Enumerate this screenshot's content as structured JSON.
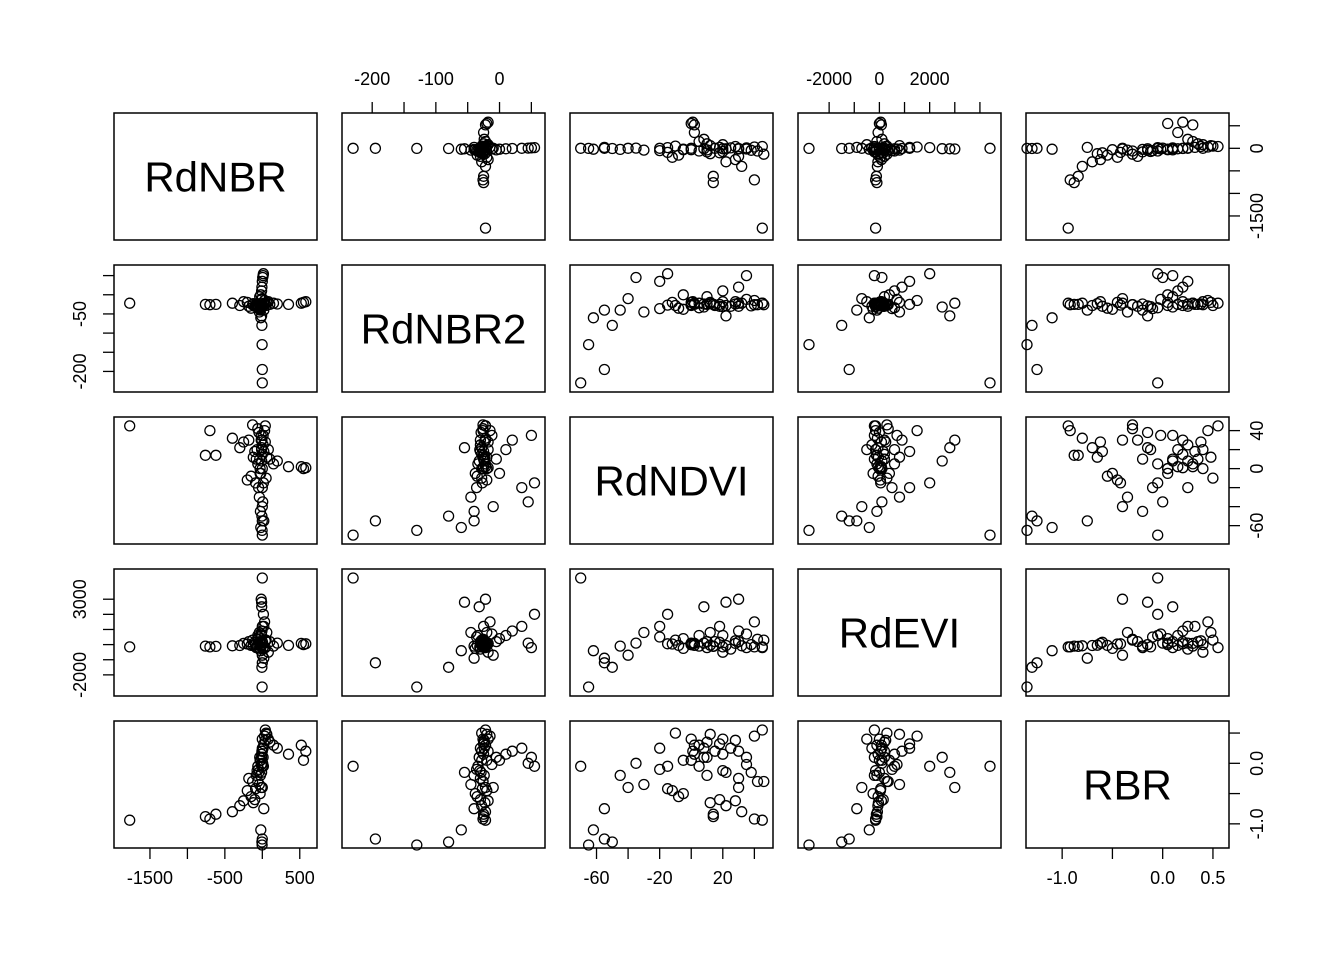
{
  "chart_data": {
    "type": "scatter",
    "subtype": "pairs-matrix",
    "title": "",
    "variables": [
      {
        "name": "RdNBR",
        "range": [
          -1900,
          650
        ]
      },
      {
        "name": "RdNBR2",
        "range": [
          -238,
          62
        ]
      },
      {
        "name": "RdNDVI",
        "range": [
          -73,
          48
        ]
      },
      {
        "name": "RdEVI",
        "range": [
          -3000,
          4600
        ]
      },
      {
        "name": "RBR",
        "range": [
          -1.3,
          0.6
        ]
      }
    ],
    "axes": [
      {
        "variable": "RdNBR",
        "side": "bottom",
        "ticks": [
          -1500,
          -1000,
          -500,
          0,
          500
        ],
        "labels": [
          "-1500",
          "",
          "-500",
          "",
          "500"
        ]
      },
      {
        "variable": "RdNBR2",
        "side": "top",
        "ticks": [
          -200,
          -150,
          -100,
          -50,
          0,
          50
        ],
        "labels": [
          "-200",
          "",
          "-100",
          "",
          "0",
          ""
        ]
      },
      {
        "variable": "RdNDVI",
        "side": "bottom",
        "ticks": [
          -60,
          -40,
          -20,
          0,
          20,
          40
        ],
        "labels": [
          "-60",
          "",
          "-20",
          "",
          "20",
          ""
        ]
      },
      {
        "variable": "RdEVI",
        "side": "top",
        "ticks": [
          -2000,
          -1000,
          0,
          1000,
          2000,
          3000,
          4000
        ],
        "labels": [
          "-2000",
          "",
          "0",
          "",
          "2000",
          "",
          ""
        ]
      },
      {
        "variable": "RBR",
        "side": "bottom",
        "ticks": [
          -1.0,
          -0.5,
          0.0,
          0.5
        ],
        "labels": [
          "-1.0",
          "",
          "0.0",
          "0.5"
        ]
      },
      {
        "variable": "RdNBR",
        "side": "right",
        "ticks": [
          -1500,
          -1000,
          -500,
          0,
          500
        ],
        "labels": [
          "-1500",
          "",
          "",
          "0",
          ""
        ]
      },
      {
        "variable": "RdNBR2",
        "side": "left",
        "ticks": [
          -200,
          -150,
          -100,
          -50,
          0,
          50
        ],
        "labels": [
          "-200",
          "",
          "",
          "-50",
          "",
          ""
        ]
      },
      {
        "variable": "RdNDVI",
        "side": "right",
        "ticks": [
          -60,
          -40,
          -20,
          0,
          20,
          40
        ],
        "labels": [
          "-60",
          "",
          "",
          "0",
          "",
          "40"
        ]
      },
      {
        "variable": "RdEVI",
        "side": "left",
        "ticks": [
          -2000,
          -1000,
          0,
          1000,
          2000,
          3000
        ],
        "labels": [
          "-2000",
          "",
          "",
          "",
          "",
          "3000"
        ]
      },
      {
        "variable": "RBR",
        "side": "right",
        "ticks": [
          -1.0,
          -0.5,
          0.0,
          0.5
        ],
        "labels": [
          "-1.0",
          "",
          "0.0",
          ""
        ]
      }
    ],
    "observations": [
      [
        -1770,
        -22,
        45,
        -150,
        -0.94
      ],
      [
        -760,
        -25,
        14,
        -100,
        -0.88
      ],
      [
        -700,
        -26,
        40,
        -150,
        -0.92
      ],
      [
        -620,
        -25,
        14,
        -120,
        -0.84
      ],
      [
        -400,
        -22,
        32,
        -80,
        -0.8
      ],
      [
        -300,
        -28,
        22,
        -60,
        -0.7
      ],
      [
        -250,
        -18,
        28,
        80,
        -0.62
      ],
      [
        -200,
        -20,
        -12,
        40,
        -0.45
      ],
      [
        -180,
        -30,
        30,
        200,
        -0.25
      ],
      [
        -150,
        -35,
        -8,
        -50,
        -0.55
      ],
      [
        -130,
        -26,
        46,
        300,
        -0.3
      ],
      [
        -100,
        -30,
        18,
        150,
        -0.6
      ],
      [
        -80,
        -24,
        10,
        -200,
        -0.2
      ],
      [
        -60,
        -34,
        5,
        600,
        -0.05
      ],
      [
        -50,
        -36,
        -20,
        500,
        -0.1
      ],
      [
        -40,
        -45,
        -30,
        800,
        -0.35
      ],
      [
        -30,
        -28,
        0,
        100,
        0.05
      ],
      [
        -25,
        -40,
        -45,
        -100,
        -0.2
      ],
      [
        -20,
        -60,
        -62,
        -400,
        -1.1
      ],
      [
        -15,
        -22,
        30,
        3000,
        -0.4
      ],
      [
        -10,
        -55,
        22,
        2800,
        -0.15
      ],
      [
        -8,
        -32,
        8,
        2500,
        0.1
      ],
      [
        -5,
        -80,
        -50,
        -1500,
        -1.3
      ],
      [
        -3,
        -130,
        -65,
        -2800,
        -1.35
      ],
      [
        0,
        -195,
        -55,
        -1200,
        -1.25
      ],
      [
        0,
        -230,
        -70,
        4400,
        -0.05
      ],
      [
        0,
        -28,
        15,
        200,
        0.2
      ],
      [
        0,
        -26,
        0,
        0,
        0.4
      ],
      [
        10,
        -30,
        25,
        -300,
        0.25
      ],
      [
        20,
        -25,
        18,
        1200,
        0.32
      ],
      [
        30,
        -15,
        40,
        1500,
        0.45
      ],
      [
        40,
        -22,
        45,
        -200,
        0.55
      ],
      [
        50,
        -28,
        -10,
        300,
        0.5
      ],
      [
        60,
        -20,
        12,
        800,
        0.48
      ],
      [
        80,
        -18,
        20,
        -500,
        0.4
      ],
      [
        100,
        -25,
        10,
        200,
        0.35
      ],
      [
        150,
        -22,
        5,
        -100,
        0.3
      ],
      [
        200,
        -24,
        8,
        100,
        0.25
      ],
      [
        350,
        -25,
        2,
        -50,
        0.15
      ],
      [
        550,
        -20,
        0,
        0,
        0.05
      ],
      [
        580,
        -18,
        1,
        50,
        0.2
      ],
      [
        520,
        -22,
        2,
        80,
        0.3
      ],
      [
        -35,
        -5,
        10,
        200,
        0.1
      ],
      [
        -20,
        0,
        -5,
        400,
        0.05
      ],
      [
        -10,
        10,
        20,
        600,
        0.15
      ],
      [
        -5,
        20,
        30,
        900,
        0.2
      ],
      [
        0,
        35,
        -20,
        1200,
        0.25
      ],
      [
        5,
        45,
        -35,
        100,
        0.0
      ],
      [
        10,
        50,
        35,
        -200,
        0.1
      ],
      [
        15,
        55,
        -15,
        2000,
        -0.05
      ],
      [
        -45,
        -29,
        38,
        0,
        -0.15
      ],
      [
        -15,
        -12,
        35,
        700,
        -0.02
      ],
      [
        0,
        -10,
        -40,
        -700,
        -0.4
      ],
      [
        -30,
        -38,
        -5,
        -250,
        -0.5
      ],
      [
        20,
        -40,
        -55,
        -900,
        -0.75
      ],
      [
        -60,
        -26,
        42,
        350,
        -0.3
      ],
      [
        -120,
        -23,
        12,
        -40,
        -0.65
      ],
      [
        -90,
        -27,
        -15,
        50,
        -0.42
      ],
      [
        40,
        -24,
        28,
        250,
        0.38
      ],
      [
        -70,
        -31,
        20,
        -150,
        -0.12
      ]
    ]
  }
}
